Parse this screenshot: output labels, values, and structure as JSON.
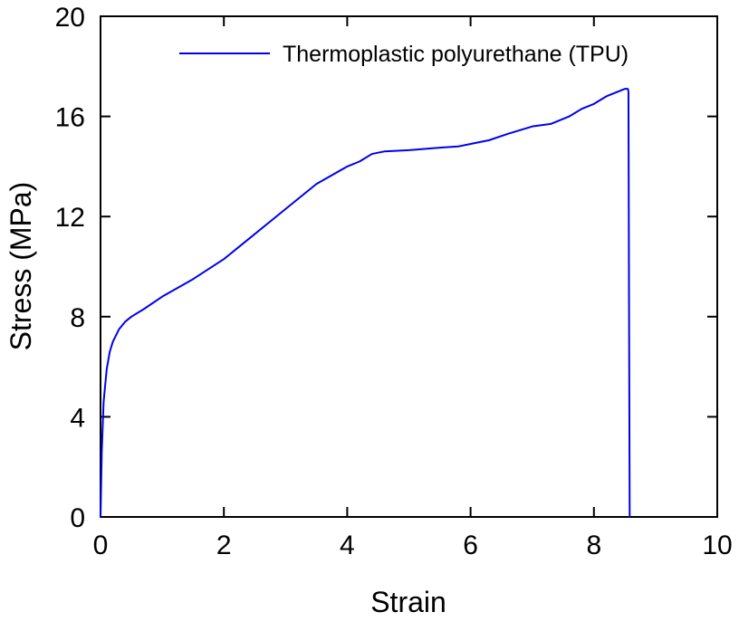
{
  "chart_data": {
    "type": "line",
    "title": "",
    "xlabel": "Strain",
    "ylabel": "Stress (MPa)",
    "xlim": [
      0,
      10
    ],
    "ylim": [
      0,
      20
    ],
    "xticks": [
      0,
      2,
      4,
      6,
      8,
      10
    ],
    "yticks": [
      0,
      4,
      8,
      12,
      16,
      20
    ],
    "xtick_labels": [
      "0",
      "2",
      "4",
      "6",
      "8",
      "10"
    ],
    "ytick_labels": [
      "0",
      "4",
      "8",
      "12",
      "16",
      "20"
    ],
    "grid": false,
    "legend_position": "top-right",
    "series": [
      {
        "name": "Thermoplastic polyurethane (TPU)",
        "color": "#0000ee",
        "x": [
          0,
          0.02,
          0.05,
          0.1,
          0.15,
          0.2,
          0.3,
          0.4,
          0.5,
          0.7,
          1.0,
          1.5,
          2.0,
          2.5,
          3.0,
          3.5,
          4.0,
          4.2,
          4.4,
          4.6,
          5.0,
          5.5,
          5.8,
          6.0,
          6.3,
          6.6,
          7.0,
          7.3,
          7.6,
          7.8,
          8.0,
          8.2,
          8.4,
          8.5,
          8.55,
          8.56,
          8.57,
          8.58
        ],
        "values": [
          0,
          2.6,
          4.6,
          5.9,
          6.6,
          7.0,
          7.5,
          7.8,
          8.0,
          8.3,
          8.8,
          9.5,
          10.3,
          11.3,
          12.3,
          13.3,
          14.0,
          14.2,
          14.5,
          14.6,
          14.65,
          14.75,
          14.8,
          14.9,
          15.05,
          15.3,
          15.6,
          15.7,
          16.0,
          16.3,
          16.5,
          16.8,
          17.0,
          17.1,
          17.1,
          17.0,
          8.0,
          0
        ]
      }
    ]
  }
}
